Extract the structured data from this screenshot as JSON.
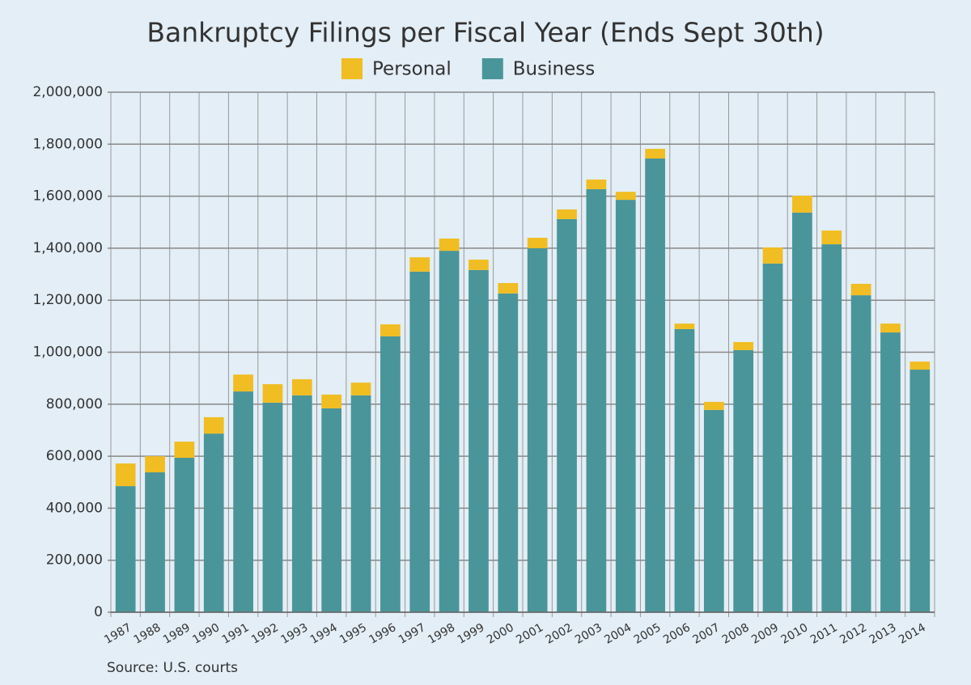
{
  "chart_data": {
    "type": "stacked_bar",
    "title": "Bankruptcy Filings per Fiscal Year (Ends Sept 30th)",
    "source": "Source: U.S. courts",
    "categories": [
      "1987",
      "1988",
      "1989",
      "1990",
      "1991",
      "1992",
      "1993",
      "1994",
      "1995",
      "1996",
      "1997",
      "1998",
      "1999",
      "2000",
      "2001",
      "2002",
      "2003",
      "2004",
      "2005",
      "2006",
      "2007",
      "2008",
      "2009",
      "2010",
      "2011",
      "2012",
      "2013",
      "2014"
    ],
    "series": [
      {
        "name": "Business",
        "color": "#4a9599",
        "values": [
          485000,
          538000,
          594000,
          687000,
          849000,
          806000,
          834000,
          784000,
          834000,
          1061000,
          1310000,
          1390000,
          1316000,
          1226000,
          1400000,
          1512000,
          1627000,
          1586000,
          1745000,
          1089000,
          778000,
          1008000,
          1341000,
          1537000,
          1415000,
          1219000,
          1076000,
          933000
        ]
      },
      {
        "name": "Personal",
        "color": "#f0bd22",
        "values": [
          87000,
          62000,
          62000,
          63000,
          65000,
          71000,
          62000,
          53000,
          49000,
          46000,
          55000,
          47000,
          40000,
          40000,
          40000,
          37000,
          37000,
          31000,
          37000,
          21000,
          31000,
          31000,
          62000,
          65000,
          53000,
          44000,
          34000,
          31000
        ]
      }
    ],
    "ylim": [
      0,
      2000000
    ],
    "yticks": [
      0,
      {
        "value": 200000,
        "label": "200,000"
      },
      {
        "value": 400000,
        "label": "400,000"
      },
      {
        "value": 600000,
        "label": "600,000"
      },
      {
        "value": 800000,
        "label": "800,000"
      },
      {
        "value": 1000000,
        "label": "1,000,000"
      },
      {
        "value": 1200000,
        "label": "1,200,000"
      },
      {
        "value": 1400000,
        "label": "1,400,000"
      },
      {
        "value": 1600000,
        "label": "1,600,000"
      },
      {
        "value": 1800000,
        "label": "1,800,000"
      },
      {
        "value": 2000000,
        "label": "2,000,000"
      }
    ],
    "grid": true
  }
}
